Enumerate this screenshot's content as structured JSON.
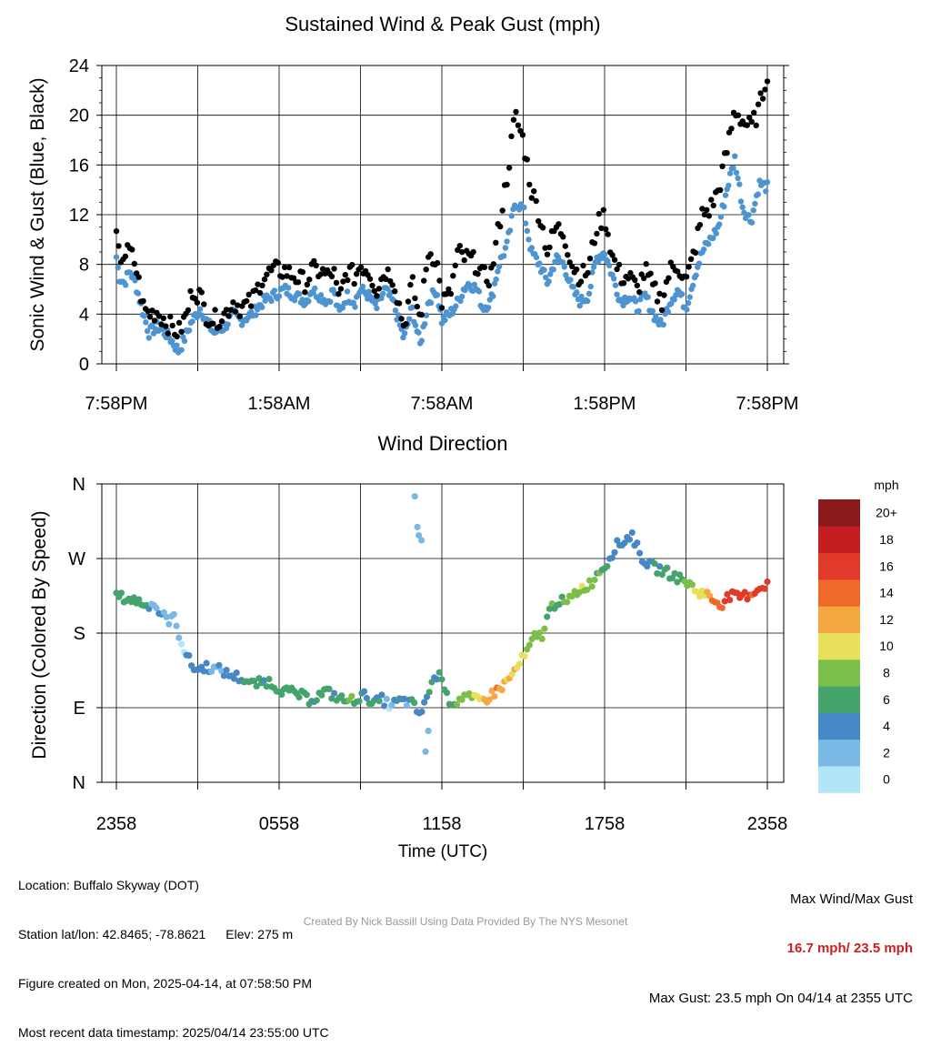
{
  "chart_data": [
    {
      "type": "scatter",
      "title": "Sustained Wind & Peak Gust (mph)",
      "ylabel": "Sonic Wind & Gust (Blue, Black)",
      "xlabel": "",
      "ylim": [
        0,
        24
      ],
      "yticks": [
        "0",
        "4",
        "8",
        "12",
        "16",
        "20",
        "24"
      ],
      "xticks": [
        "7:58PM",
        "1:58AM",
        "7:58AM",
        "1:58PM",
        "7:58PM"
      ],
      "grid": true,
      "x_hours_keypoints": [
        0,
        0.1,
        0.3,
        0.5,
        0.7,
        1.0,
        1.2,
        1.5,
        1.8,
        2.0,
        2.3,
        2.6,
        2.8,
        3.1,
        3.3,
        3.6,
        4.0,
        4.3,
        4.6,
        5.0,
        5.4,
        5.8,
        6.2,
        6.6,
        7.0,
        7.2,
        7.5,
        7.8,
        8.0,
        8.2,
        8.5,
        8.8,
        9.0,
        9.3,
        9.6,
        9.9,
        10.2,
        10.6,
        10.9,
        11.2,
        11.5,
        11.8,
        12.0,
        12.3,
        12.6,
        12.8,
        13.0,
        13.3,
        13.5,
        13.8,
        14.1,
        14.4,
        14.7,
        15.0,
        15.3,
        15.6,
        15.9,
        16.2,
        16.5,
        16.8,
        17.1,
        17.4,
        17.7,
        18.0,
        18.3,
        18.6,
        18.9,
        19.2,
        19.5,
        19.8,
        20.1,
        20.4,
        20.7,
        21.0,
        21.3,
        21.6,
        21.9,
        22.2,
        22.5,
        22.8,
        23.1,
        23.4,
        23.7,
        24.0
      ],
      "series": [
        {
          "name": "Sustained Wind",
          "color": "#4d94d0",
          "x_hours": [
            0,
            0.1,
            0.3,
            0.5,
            0.7,
            1.0,
            1.2,
            1.5,
            1.8,
            2.0,
            2.3,
            2.6,
            2.8,
            3.1,
            3.3,
            3.6,
            4.0,
            4.3,
            4.6,
            5.0,
            5.4,
            5.8,
            6.2,
            6.6,
            7.0,
            7.2,
            7.5,
            7.8,
            8.0,
            8.2,
            8.5,
            8.8,
            9.0,
            9.3,
            9.6,
            9.9,
            10.2,
            10.6,
            10.9,
            11.2,
            11.5,
            11.8,
            12.0,
            12.3,
            12.6,
            12.8,
            13.0,
            13.3,
            13.5,
            13.8,
            14.1,
            14.4,
            14.7,
            15.0,
            15.3,
            15.6,
            15.9,
            16.2,
            16.5,
            16.8,
            17.1,
            17.4,
            17.7,
            18.0,
            18.3,
            18.6,
            18.9,
            19.2,
            19.5,
            19.8,
            20.1,
            20.4,
            20.7,
            21.0,
            21.3,
            21.6,
            21.9,
            22.2,
            22.5,
            22.8,
            23.1,
            23.4,
            23.7,
            24.0
          ],
          "values": [
            8.6,
            7.0,
            6.5,
            7.5,
            6.5,
            4.0,
            2.5,
            3.0,
            2.5,
            2.0,
            1.0,
            2.5,
            3.5,
            4.5,
            3.5,
            2.5,
            3.0,
            4.0,
            3.5,
            4.0,
            5.0,
            5.5,
            6.0,
            5.5,
            5.0,
            6.0,
            5.5,
            5.0,
            6.0,
            4.0,
            5.5,
            5.0,
            6.0,
            5.5,
            4.5,
            6.0,
            5.0,
            2.0,
            4.5,
            1.5,
            5.0,
            6.0,
            3.5,
            4.0,
            5.0,
            6.0,
            6.5,
            6.0,
            4.5,
            5.0,
            8.0,
            9.5,
            13.0,
            12.5,
            9.0,
            8.0,
            6.5,
            8.5,
            8.0,
            6.0,
            5.0,
            5.5,
            8.5,
            9.0,
            7.0,
            5.0,
            5.5,
            4.5,
            5.5,
            4.0,
            3.0,
            5.0,
            6.0,
            4.5,
            7.0,
            9.0,
            10.0,
            11.0,
            14.0,
            16.5,
            12.5,
            11.5,
            14.5,
            14.2
          ]
        },
        {
          "name": "Peak Gust",
          "color": "#000000",
          "x_hours": [
            0,
            0.1,
            0.3,
            0.5,
            0.7,
            1.0,
            1.2,
            1.5,
            1.8,
            2.0,
            2.3,
            2.6,
            2.8,
            3.1,
            3.3,
            3.6,
            4.0,
            4.3,
            4.6,
            5.0,
            5.4,
            5.8,
            6.2,
            6.6,
            7.0,
            7.2,
            7.5,
            7.8,
            8.0,
            8.2,
            8.5,
            8.8,
            9.0,
            9.3,
            9.6,
            9.9,
            10.2,
            10.6,
            10.9,
            11.2,
            11.5,
            11.8,
            12.0,
            12.3,
            12.6,
            12.8,
            13.0,
            13.3,
            13.5,
            13.8,
            14.1,
            14.4,
            14.7,
            15.0,
            15.3,
            15.6,
            15.9,
            16.2,
            16.5,
            16.8,
            17.1,
            17.4,
            17.7,
            18.0,
            18.3,
            18.6,
            18.9,
            19.2,
            19.5,
            19.8,
            20.1,
            20.4,
            20.7,
            21.0,
            21.3,
            21.6,
            21.9,
            22.2,
            22.5,
            22.8,
            23.1,
            23.4,
            23.7,
            24.0
          ],
          "values": [
            10.2,
            8.5,
            8.8,
            9.0,
            8.0,
            4.5,
            4.0,
            4.2,
            3.5,
            3.0,
            2.5,
            4.0,
            6.0,
            5.5,
            4.0,
            3.5,
            4.0,
            5.0,
            4.5,
            5.0,
            7.0,
            7.5,
            7.5,
            7.0,
            6.5,
            7.5,
            7.5,
            7.0,
            7.5,
            5.0,
            7.5,
            7.0,
            8.0,
            7.5,
            6.0,
            7.5,
            7.0,
            3.0,
            6.5,
            3.5,
            9.0,
            8.5,
            5.0,
            5.5,
            9.0,
            8.5,
            8.5,
            8.0,
            7.0,
            7.0,
            11.0,
            15.0,
            20.0,
            18.0,
            14.0,
            12.0,
            9.0,
            11.0,
            10.5,
            8.0,
            7.0,
            7.5,
            11.0,
            12.0,
            8.5,
            7.0,
            7.0,
            6.0,
            7.5,
            6.0,
            5.0,
            7.5,
            8.0,
            6.5,
            9.0,
            12.0,
            12.5,
            14.0,
            17.0,
            20.5,
            19.5,
            19.0,
            20.5,
            23.5
          ]
        }
      ]
    },
    {
      "type": "scatter",
      "title": "Wind Direction",
      "ylabel": "Direction (Colored By Speed)",
      "xlabel": "Time (UTC)",
      "ylim": [
        0,
        360
      ],
      "yticks": [
        "N",
        "E",
        "S",
        "W",
        "N"
      ],
      "xticks": [
        "2358",
        "0558",
        "1158",
        "1758",
        "2358"
      ],
      "grid": true,
      "colorbar": {
        "title": "mph",
        "labels": [
          "0",
          "2",
          "4",
          "6",
          "8",
          "10",
          "12",
          "14",
          "16",
          "18",
          "20+"
        ],
        "colors": [
          "#b3e5f8",
          "#7ab8e6",
          "#4688c6",
          "#45a36c",
          "#7bbf4a",
          "#e8e05a",
          "#f5a742",
          "#ef6a2a",
          "#e23a2a",
          "#c41d22",
          "#8c1a1a"
        ]
      },
      "series": [
        {
          "name": "Direction",
          "x_hours": [
            0,
            0.3,
            0.6,
            0.9,
            1.1,
            1.3,
            1.6,
            1.9,
            2.1,
            2.3,
            2.5,
            2.6,
            2.8,
            3.0,
            3.3,
            3.6,
            3.9,
            4.1,
            4.4,
            4.7,
            5.0,
            5.3,
            5.6,
            5.9,
            6.2,
            6.5,
            6.8,
            7.1,
            7.4,
            7.7,
            8.0,
            8.3,
            8.6,
            8.9,
            9.2,
            9.5,
            9.8,
            10.1,
            10.4,
            10.7,
            10.9,
            11.0,
            11.1,
            11.3,
            11.5,
            11.7,
            12.0,
            12.2,
            12.5,
            12.8,
            13.1,
            13.4,
            13.7,
            14.0,
            14.3,
            14.6,
            14.9,
            15.2,
            15.4,
            15.7,
            16.0,
            16.3,
            16.6,
            16.9,
            17.2,
            17.5,
            17.8,
            18.1,
            18.4,
            18.7,
            19.0,
            19.3,
            19.6,
            19.9,
            20.2,
            20.5,
            20.8,
            21.1,
            21.4,
            21.7,
            22.0,
            22.3,
            22.6,
            22.9,
            23.2,
            23.5,
            23.8,
            24.0
          ],
          "y_degrees": [
            225,
            222,
            220,
            218,
            212,
            218,
            205,
            195,
            200,
            180,
            160,
            152,
            140,
            135,
            140,
            137,
            135,
            130,
            128,
            124,
            118,
            120,
            122,
            115,
            110,
            108,
            105,
            100,
            103,
            110,
            105,
            100,
            98,
            102,
            105,
            95,
            100,
            92,
            98,
            97,
            95,
            90,
            85,
            85,
            110,
            125,
            130,
            100,
            96,
            105,
            100,
            98,
            102,
            110,
            118,
            130,
            145,
            160,
            175,
            178,
            210,
            220,
            215,
            228,
            235,
            240,
            255,
            265,
            285,
            290,
            300,
            275,
            263,
            258,
            255,
            250,
            245,
            240,
            230,
            228,
            220,
            215,
            225,
            223,
            225,
            230,
            236,
            240
          ],
          "speed_mph": [
            7,
            6,
            6,
            7,
            6,
            2,
            3,
            2,
            3,
            1,
            1,
            4,
            4,
            4,
            3,
            3,
            3,
            4,
            4,
            5,
            6,
            6,
            5,
            6,
            6,
            6,
            6,
            6,
            5,
            6,
            5,
            6,
            7,
            6,
            5,
            6,
            4,
            1,
            5,
            3,
            6,
            5,
            3,
            4,
            6,
            5,
            6,
            6,
            7,
            8,
            9,
            10,
            12,
            13,
            12,
            11,
            10,
            8,
            8,
            7,
            7,
            6,
            7,
            8,
            9,
            8,
            7,
            5,
            4,
            4,
            4,
            4,
            4,
            5,
            6,
            6,
            7,
            8,
            10,
            11,
            13,
            15,
            16,
            16,
            16,
            15,
            16,
            16
          ]
        }
      ]
    }
  ],
  "info": {
    "location": "Location: Buffalo Skyway (DOT)",
    "latlon": "Station lat/lon: 42.8465; -78.8621",
    "elev": "Elev: 275 m",
    "created": "Figure created on Mon, 2025-04-14, at 07:58:50 PM",
    "recent": "Most recent data timestamp: 2025/04/14 23:55:00 UTC"
  },
  "maxinfo": {
    "label": "Max Wind/Max Gust",
    "values": "16.7 mph/ 23.5 mph",
    "gust": "Max Gust: 23.5 mph On 04/14 at 2355 UTC"
  },
  "credit": "Created By Nick Bassill Using Data Provided By The NYS Mesonet"
}
